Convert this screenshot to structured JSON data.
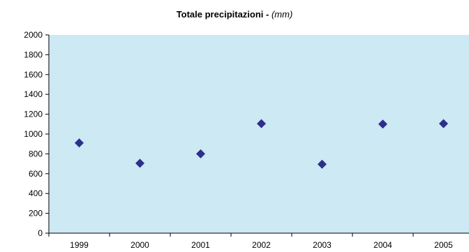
{
  "chart_data": {
    "type": "scatter",
    "title": "Totale precipitazioni - ",
    "title_unit": "(mm)",
    "x": [
      "1999",
      "2000",
      "2001",
      "2002",
      "2003",
      "2004",
      "2005"
    ],
    "y": [
      910,
      705,
      800,
      1105,
      695,
      1100,
      1105
    ],
    "ylim": [
      0,
      2000
    ],
    "yticks": [
      0,
      200,
      400,
      600,
      800,
      1000,
      1200,
      1400,
      1600,
      1800,
      2000
    ],
    "grid": false,
    "legend": "none",
    "colors": {
      "plot_background": "#cce9f4",
      "marker": "#2e2e8c",
      "axis": "#000000"
    },
    "marker_shape": "diamond"
  }
}
